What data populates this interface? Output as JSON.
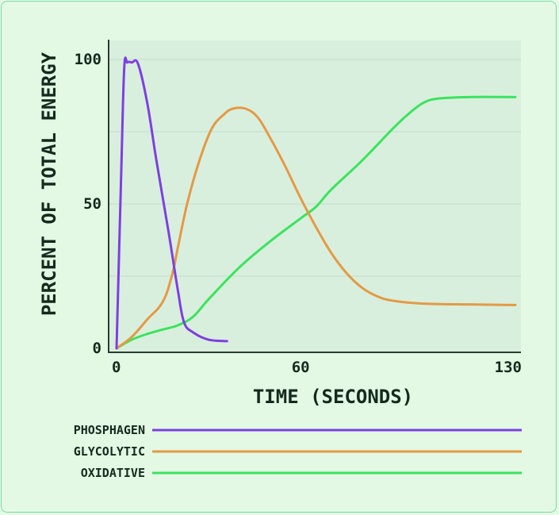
{
  "chart_data": {
    "type": "line",
    "title": "",
    "xlabel": "TIME (SECONDS)",
    "ylabel": "PERCENT OF TOTAL ENERGY",
    "xlim": [
      0,
      130
    ],
    "ylim": [
      0,
      100
    ],
    "x_ticks": [
      "0",
      "60",
      "130"
    ],
    "y_ticks": [
      "0",
      "50",
      "100"
    ],
    "grid": "horizontal",
    "legend_position": "bottom",
    "colors": {
      "background": "#e3f9e4",
      "plot_area": "#d9efdd",
      "axis": "#2d3a33",
      "grid": "#c6dccb"
    },
    "series": [
      {
        "name": "PHOSPHAGEN",
        "color": "#7e3fe0",
        "points": [
          [
            0,
            0
          ],
          [
            1.5,
            60
          ],
          [
            2.5,
            97
          ],
          [
            3.5,
            99
          ],
          [
            5,
            99
          ],
          [
            7,
            98.5
          ],
          [
            10,
            85
          ],
          [
            13,
            65
          ],
          [
            17,
            40
          ],
          [
            20,
            20
          ],
          [
            22,
            9
          ],
          [
            25,
            5.5
          ],
          [
            30,
            3
          ],
          [
            36,
            2.5
          ]
        ]
      },
      {
        "name": "GLYCOLYTIC",
        "color": "#e39a45",
        "points": [
          [
            0,
            0
          ],
          [
            5,
            4
          ],
          [
            10,
            10
          ],
          [
            15,
            16
          ],
          [
            18,
            25
          ],
          [
            20,
            35
          ],
          [
            23,
            50
          ],
          [
            27,
            65
          ],
          [
            31,
            76
          ],
          [
            35,
            81
          ],
          [
            38,
            83
          ],
          [
            42,
            83
          ],
          [
            46,
            80
          ],
          [
            50,
            73
          ],
          [
            55,
            63
          ],
          [
            60,
            52
          ],
          [
            65,
            42
          ],
          [
            70,
            33
          ],
          [
            75,
            26
          ],
          [
            80,
            21
          ],
          [
            85,
            18
          ],
          [
            90,
            16.5
          ],
          [
            100,
            15.5
          ],
          [
            115,
            15.2
          ],
          [
            130,
            15
          ]
        ]
      },
      {
        "name": "OXIDATIVE",
        "color": "#3be35e",
        "points": [
          [
            0,
            0
          ],
          [
            5,
            3
          ],
          [
            10,
            5
          ],
          [
            15,
            6.5
          ],
          [
            20,
            8
          ],
          [
            25,
            11
          ],
          [
            30,
            17
          ],
          [
            40,
            28
          ],
          [
            50,
            37
          ],
          [
            60,
            45
          ],
          [
            65,
            49
          ],
          [
            70,
            55
          ],
          [
            80,
            65
          ],
          [
            90,
            76
          ],
          [
            95,
            81
          ],
          [
            100,
            85
          ],
          [
            105,
            86.5
          ],
          [
            115,
            87
          ],
          [
            130,
            87
          ]
        ]
      }
    ]
  }
}
